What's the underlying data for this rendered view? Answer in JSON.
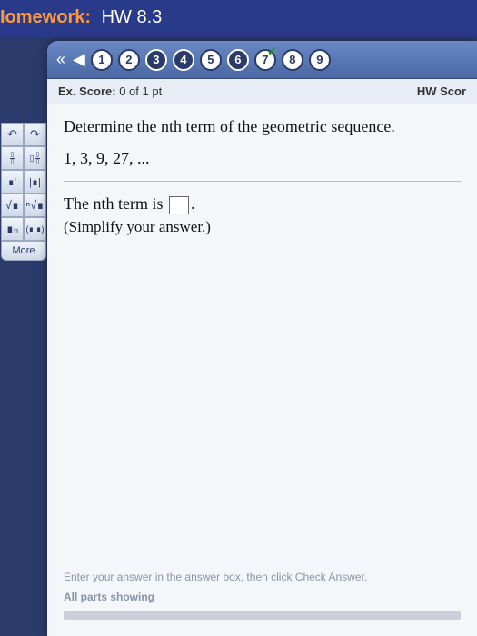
{
  "title": {
    "prefix": "Iomework:",
    "name": "HW 8.3"
  },
  "nav": {
    "arrows": {
      "rewind": "«",
      "back": "◀"
    },
    "questions": [
      {
        "n": "1",
        "style": "light",
        "check": false
      },
      {
        "n": "2",
        "style": "light",
        "check": false
      },
      {
        "n": "3",
        "style": "dark",
        "check": false
      },
      {
        "n": "4",
        "style": "dark",
        "check": false
      },
      {
        "n": "5",
        "style": "light",
        "check": false
      },
      {
        "n": "6",
        "style": "dark",
        "check": false
      },
      {
        "n": "7",
        "style": "light",
        "check": true
      },
      {
        "n": "8",
        "style": "light",
        "check": false
      },
      {
        "n": "9",
        "style": "light",
        "check": false
      }
    ]
  },
  "score": {
    "ex_label": "Ex. Score:",
    "ex_value": "0 of 1 pt",
    "hw_label": "HW Scor"
  },
  "problem": {
    "prompt": "Determine the nth term of the geometric sequence.",
    "sequence": "1, 3, 9, 27, ...",
    "answer_pre": "The nth term is ",
    "answer_post": ".",
    "hint": "(Simplify your answer.)"
  },
  "footer": {
    "line1": "Enter your answer in the answer box, then click Check Answer.",
    "line2": "All parts showing"
  },
  "tools": {
    "row1": [
      "↶",
      "↷"
    ],
    "row4": [
      "√∎",
      "ⁿ√∎"
    ],
    "row5": [
      "∎ₙ",
      "(∎,∎)"
    ],
    "more": "More"
  }
}
